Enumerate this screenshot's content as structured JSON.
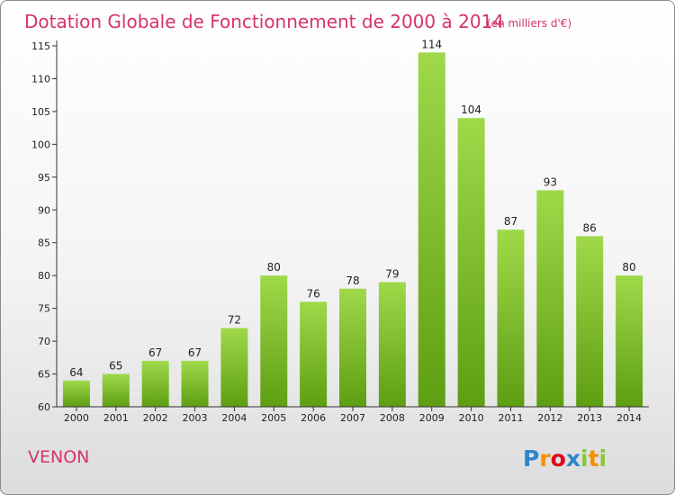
{
  "chart_data": {
    "type": "bar",
    "title": "Dotation Globale de Fonctionnement de 2000 à 2014",
    "subtitle": "(en milliers d'€)",
    "categories": [
      "2000",
      "2001",
      "2002",
      "2003",
      "2004",
      "2005",
      "2006",
      "2007",
      "2008",
      "2009",
      "2010",
      "2011",
      "2012",
      "2013",
      "2014"
    ],
    "values": [
      64,
      65,
      67,
      67,
      72,
      80,
      76,
      78,
      79,
      114,
      104,
      87,
      93,
      86,
      80
    ],
    "ylim": [
      60,
      115
    ],
    "yticks": [
      60,
      65,
      70,
      75,
      80,
      85,
      90,
      95,
      100,
      105,
      110,
      115
    ],
    "xlabel": "",
    "ylabel": "",
    "grid": false,
    "bar_color_top": "#9fd94a",
    "bar_color_bottom": "#5e9e12"
  },
  "commune": "VENON",
  "logo": {
    "letters": [
      "P",
      "r",
      "o",
      "x",
      "i",
      "t",
      "i"
    ],
    "colors": [
      "#2e86c8",
      "#f39200",
      "#e2001a",
      "#2e86c8",
      "#8cc63f",
      "#f39200",
      "#8cc63f"
    ]
  }
}
